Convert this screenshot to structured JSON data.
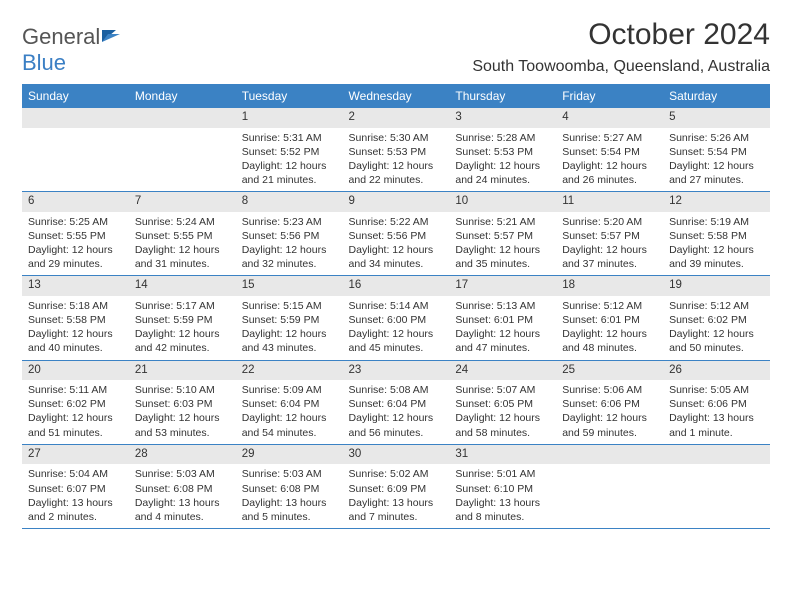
{
  "logo": {
    "text1": "General",
    "text2": "Blue"
  },
  "title": "October 2024",
  "location": "South Toowoomba, Queensland, Australia",
  "colors": {
    "header_bg": "#3b82c4",
    "header_text": "#ffffff",
    "daynum_bg": "#e8e8e8",
    "border": "#3b82c4",
    "text": "#333333",
    "logo_gray": "#555555",
    "logo_blue": "#3b7fc4"
  },
  "typography": {
    "title_fontsize": 30,
    "location_fontsize": 16,
    "dayheader_fontsize": 12,
    "daynum_fontsize": 11.5,
    "cell_fontsize": 10.5
  },
  "weekdays": [
    "Sunday",
    "Monday",
    "Tuesday",
    "Wednesday",
    "Thursday",
    "Friday",
    "Saturday"
  ],
  "first_day_column": 2,
  "days": [
    {
      "n": 1,
      "sunrise": "5:31 AM",
      "sunset": "5:52 PM",
      "daylight": "12 hours and 21 minutes."
    },
    {
      "n": 2,
      "sunrise": "5:30 AM",
      "sunset": "5:53 PM",
      "daylight": "12 hours and 22 minutes."
    },
    {
      "n": 3,
      "sunrise": "5:28 AM",
      "sunset": "5:53 PM",
      "daylight": "12 hours and 24 minutes."
    },
    {
      "n": 4,
      "sunrise": "5:27 AM",
      "sunset": "5:54 PM",
      "daylight": "12 hours and 26 minutes."
    },
    {
      "n": 5,
      "sunrise": "5:26 AM",
      "sunset": "5:54 PM",
      "daylight": "12 hours and 27 minutes."
    },
    {
      "n": 6,
      "sunrise": "5:25 AM",
      "sunset": "5:55 PM",
      "daylight": "12 hours and 29 minutes."
    },
    {
      "n": 7,
      "sunrise": "5:24 AM",
      "sunset": "5:55 PM",
      "daylight": "12 hours and 31 minutes."
    },
    {
      "n": 8,
      "sunrise": "5:23 AM",
      "sunset": "5:56 PM",
      "daylight": "12 hours and 32 minutes."
    },
    {
      "n": 9,
      "sunrise": "5:22 AM",
      "sunset": "5:56 PM",
      "daylight": "12 hours and 34 minutes."
    },
    {
      "n": 10,
      "sunrise": "5:21 AM",
      "sunset": "5:57 PM",
      "daylight": "12 hours and 35 minutes."
    },
    {
      "n": 11,
      "sunrise": "5:20 AM",
      "sunset": "5:57 PM",
      "daylight": "12 hours and 37 minutes."
    },
    {
      "n": 12,
      "sunrise": "5:19 AM",
      "sunset": "5:58 PM",
      "daylight": "12 hours and 39 minutes."
    },
    {
      "n": 13,
      "sunrise": "5:18 AM",
      "sunset": "5:58 PM",
      "daylight": "12 hours and 40 minutes."
    },
    {
      "n": 14,
      "sunrise": "5:17 AM",
      "sunset": "5:59 PM",
      "daylight": "12 hours and 42 minutes."
    },
    {
      "n": 15,
      "sunrise": "5:15 AM",
      "sunset": "5:59 PM",
      "daylight": "12 hours and 43 minutes."
    },
    {
      "n": 16,
      "sunrise": "5:14 AM",
      "sunset": "6:00 PM",
      "daylight": "12 hours and 45 minutes."
    },
    {
      "n": 17,
      "sunrise": "5:13 AM",
      "sunset": "6:01 PM",
      "daylight": "12 hours and 47 minutes."
    },
    {
      "n": 18,
      "sunrise": "5:12 AM",
      "sunset": "6:01 PM",
      "daylight": "12 hours and 48 minutes."
    },
    {
      "n": 19,
      "sunrise": "5:12 AM",
      "sunset": "6:02 PM",
      "daylight": "12 hours and 50 minutes."
    },
    {
      "n": 20,
      "sunrise": "5:11 AM",
      "sunset": "6:02 PM",
      "daylight": "12 hours and 51 minutes."
    },
    {
      "n": 21,
      "sunrise": "5:10 AM",
      "sunset": "6:03 PM",
      "daylight": "12 hours and 53 minutes."
    },
    {
      "n": 22,
      "sunrise": "5:09 AM",
      "sunset": "6:04 PM",
      "daylight": "12 hours and 54 minutes."
    },
    {
      "n": 23,
      "sunrise": "5:08 AM",
      "sunset": "6:04 PM",
      "daylight": "12 hours and 56 minutes."
    },
    {
      "n": 24,
      "sunrise": "5:07 AM",
      "sunset": "6:05 PM",
      "daylight": "12 hours and 58 minutes."
    },
    {
      "n": 25,
      "sunrise": "5:06 AM",
      "sunset": "6:06 PM",
      "daylight": "12 hours and 59 minutes."
    },
    {
      "n": 26,
      "sunrise": "5:05 AM",
      "sunset": "6:06 PM",
      "daylight": "13 hours and 1 minute."
    },
    {
      "n": 27,
      "sunrise": "5:04 AM",
      "sunset": "6:07 PM",
      "daylight": "13 hours and 2 minutes."
    },
    {
      "n": 28,
      "sunrise": "5:03 AM",
      "sunset": "6:08 PM",
      "daylight": "13 hours and 4 minutes."
    },
    {
      "n": 29,
      "sunrise": "5:03 AM",
      "sunset": "6:08 PM",
      "daylight": "13 hours and 5 minutes."
    },
    {
      "n": 30,
      "sunrise": "5:02 AM",
      "sunset": "6:09 PM",
      "daylight": "13 hours and 7 minutes."
    },
    {
      "n": 31,
      "sunrise": "5:01 AM",
      "sunset": "6:10 PM",
      "daylight": "13 hours and 8 minutes."
    }
  ],
  "labels": {
    "sunrise": "Sunrise:",
    "sunset": "Sunset:",
    "daylight": "Daylight:"
  }
}
